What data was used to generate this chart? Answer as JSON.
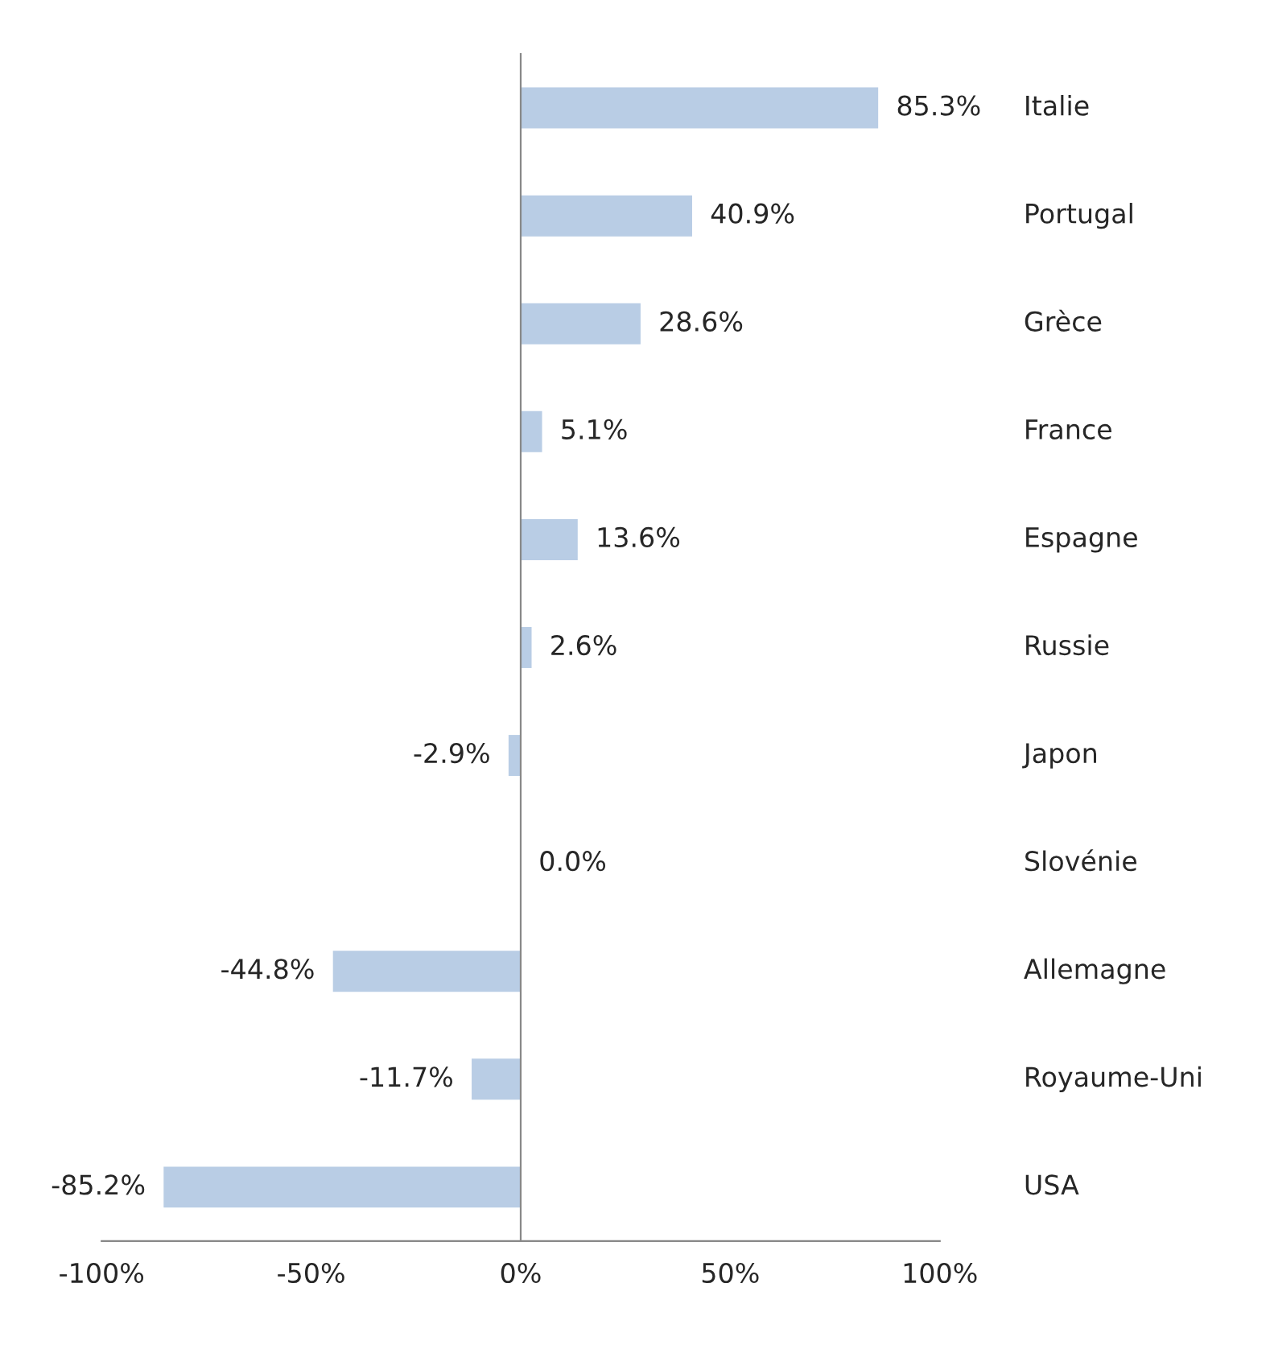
{
  "chart_data": {
    "type": "bar",
    "orientation": "horizontal",
    "categories": [
      "Italie",
      "Portugal",
      "Grèce",
      "France",
      "Espagne",
      "Russie",
      "Japon",
      "Slovénie",
      "Allemagne",
      "Royaume-Uni",
      "USA"
    ],
    "values": [
      85.3,
      40.9,
      28.6,
      5.1,
      13.6,
      2.6,
      -2.9,
      0.0,
      -44.8,
      -11.7,
      -85.2
    ],
    "value_labels": [
      "85.3%",
      "40.9%",
      "28.6%",
      "5.1%",
      "13.6%",
      "2.6%",
      "-2.9%",
      "0.0%",
      "-44.8%",
      "-11.7%",
      "-85.2%"
    ],
    "color": "#b9cde5",
    "xlim": [
      -100,
      100
    ],
    "xticks": [
      {
        "value": -100,
        "label": "-100%"
      },
      {
        "value": -50,
        "label": "-50%"
      },
      {
        "value": 0,
        "label": "0%"
      },
      {
        "value": 50,
        "label": "50%"
      },
      {
        "value": 100,
        "label": "100%"
      }
    ],
    "legend": false
  }
}
